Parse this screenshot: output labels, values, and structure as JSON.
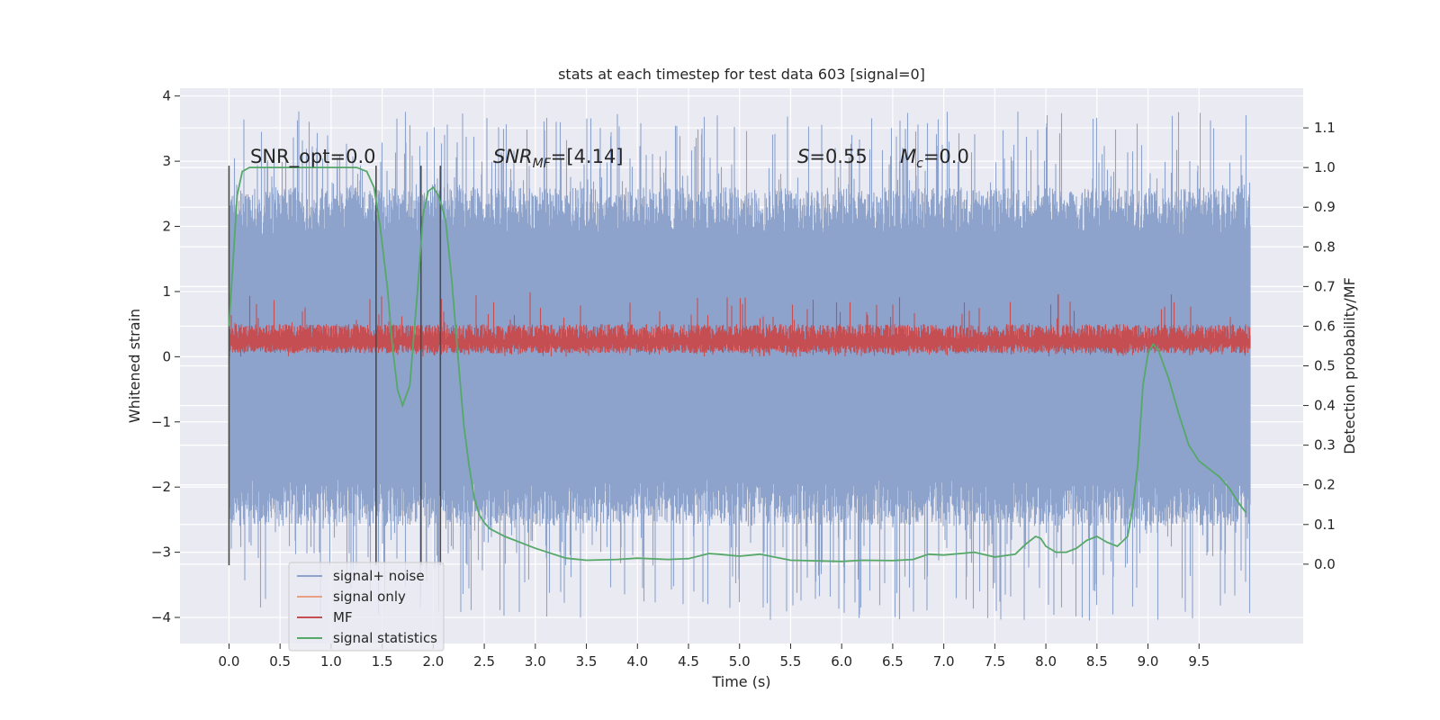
{
  "chart_data": {
    "type": "line",
    "title": "stats at each timestep for test data 603 [signal=0]",
    "xlabel": "Time (s)",
    "ylabel": "Whitened strain",
    "ylabel_right": "Detection probability/MF",
    "xlim": [
      -0.48,
      10.52
    ],
    "ylim": [
      -4.4,
      4.12
    ],
    "ylim_right": [
      -0.2,
      1.2
    ],
    "x_ticks": [
      0.0,
      0.5,
      1.0,
      1.5,
      2.0,
      2.5,
      3.0,
      3.5,
      4.0,
      4.5,
      5.0,
      5.5,
      6.0,
      6.5,
      7.0,
      7.5,
      8.0,
      8.5,
      9.0,
      9.5
    ],
    "x_tick_labels": [
      "0.0",
      "0.5",
      "1.0",
      "1.5",
      "2.0",
      "2.5",
      "3.0",
      "3.5",
      "4.0",
      "4.5",
      "5.0",
      "5.5",
      "6.0",
      "6.5",
      "7.0",
      "7.5",
      "8.0",
      "8.5",
      "9.0",
      "9.5"
    ],
    "y_ticks": [
      -4,
      -3,
      -2,
      -1,
      0,
      1,
      2,
      3,
      4
    ],
    "y_tick_labels": [
      "−4",
      "−3",
      "−2",
      "−1",
      "0",
      "1",
      "2",
      "3",
      "4"
    ],
    "y_right_ticks": [
      0.0,
      0.1,
      0.2,
      0.3,
      0.4,
      0.5,
      0.6,
      0.7,
      0.8,
      0.9,
      1.0,
      1.1
    ],
    "y_right_tick_labels": [
      "0.0",
      "0.1",
      "0.2",
      "0.3",
      "0.4",
      "0.5",
      "0.6",
      "0.7",
      "0.8",
      "0.9",
      "1.0",
      "1.1"
    ],
    "grid": true,
    "legend_position": "lower-left",
    "series": [
      {
        "name": "signal+ noise",
        "axis": "left",
        "color": "#8ea3cc",
        "style": "dense noise band",
        "x_range": [
          0.0,
          10.0
        ],
        "band_y_range": [
          -2.6,
          2.6
        ],
        "peak_y_range": [
          -4.05,
          3.78
        ]
      },
      {
        "name": "signal only",
        "axis": "left",
        "color": "#e9a083",
        "values": []
      },
      {
        "name": "MF",
        "axis": "left",
        "color": "#c44e52",
        "style": "dense noise band",
        "x_range": [
          0.0,
          10.0
        ],
        "band_y_range": [
          0.05,
          0.5
        ],
        "peak_y_range": [
          0.0,
          1.0
        ]
      },
      {
        "name": "signal statistics",
        "axis": "right",
        "color": "#55a868",
        "x": [
          0.0,
          0.08,
          0.13,
          0.2,
          0.3,
          0.5,
          0.7,
          0.9,
          1.1,
          1.25,
          1.35,
          1.42,
          1.48,
          1.55,
          1.6,
          1.65,
          1.7,
          1.77,
          1.85,
          1.9,
          1.95,
          2.0,
          2.05,
          2.12,
          2.18,
          2.25,
          2.3,
          2.35,
          2.4,
          2.45,
          2.5,
          2.55,
          2.7,
          3.0,
          3.3,
          3.5,
          3.8,
          4.0,
          4.3,
          4.5,
          4.7,
          4.8,
          5.0,
          5.2,
          5.3,
          5.5,
          5.8,
          6.0,
          6.2,
          6.5,
          6.7,
          6.85,
          7.0,
          7.3,
          7.5,
          7.7,
          7.8,
          7.9,
          7.95,
          8.0,
          8.1,
          8.2,
          8.3,
          8.4,
          8.5,
          8.6,
          8.7,
          8.8,
          8.85,
          8.9,
          8.95,
          9.0,
          9.05,
          9.1,
          9.2,
          9.3,
          9.4,
          9.5,
          9.6,
          9.7,
          9.8,
          9.9,
          9.96
        ],
        "values": [
          0.6,
          0.93,
          0.99,
          1.0,
          1.0,
          1.0,
          1.0,
          1.0,
          1.0,
          1.0,
          0.99,
          0.95,
          0.85,
          0.7,
          0.55,
          0.44,
          0.4,
          0.45,
          0.7,
          0.88,
          0.94,
          0.95,
          0.93,
          0.87,
          0.72,
          0.5,
          0.35,
          0.25,
          0.17,
          0.125,
          0.105,
          0.09,
          0.07,
          0.04,
          0.015,
          0.01,
          0.012,
          0.015,
          0.012,
          0.014,
          0.027,
          0.025,
          0.02,
          0.025,
          0.02,
          0.01,
          0.008,
          0.007,
          0.01,
          0.009,
          0.012,
          0.025,
          0.023,
          0.03,
          0.018,
          0.025,
          0.05,
          0.07,
          0.065,
          0.045,
          0.03,
          0.03,
          0.04,
          0.06,
          0.07,
          0.055,
          0.045,
          0.07,
          0.14,
          0.25,
          0.45,
          0.53,
          0.555,
          0.54,
          0.47,
          0.38,
          0.3,
          0.26,
          0.24,
          0.22,
          0.19,
          0.15,
          0.13
        ]
      }
    ],
    "vertical_lines": [
      0.0,
      1.44,
      1.88,
      2.07
    ],
    "annotations": [
      {
        "text": "SNR_opt=0.0"
      },
      {
        "text": "SNR",
        "subscript": "MF",
        "suffix": "=[4.14]"
      },
      {
        "text": "S=0.55"
      },
      {
        "text": "M",
        "subscript": "c",
        "suffix": "=0.0"
      }
    ],
    "legend_entries": [
      {
        "label": "signal+ noise",
        "color": "#8ea3cc"
      },
      {
        "label": "signal only",
        "color": "#e9a083"
      },
      {
        "label": "MF",
        "color": "#c44e52"
      },
      {
        "label": "signal statistics",
        "color": "#55a868"
      }
    ]
  }
}
